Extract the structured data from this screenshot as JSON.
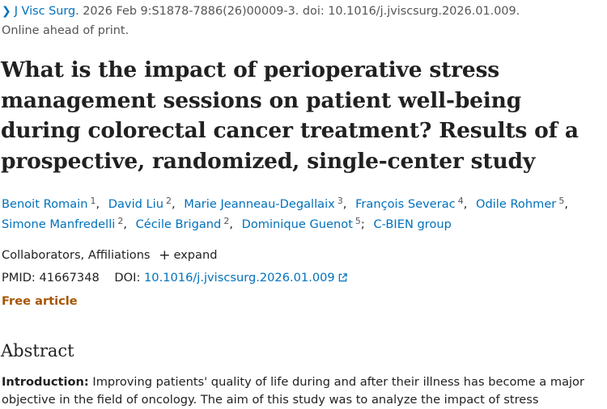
{
  "citation": {
    "journal": "J Visc Surg",
    "details": ". 2026 Feb 9:S1878-7886(26)00009-3. doi: 10.1016/j.jviscsurg.2026.01.009.",
    "status": "Online ahead of print."
  },
  "title": "What is the impact of perioperative stress management sessions on patient well-being during colorectal cancer treatment? Results of a prospective, randomized, single-center study",
  "authors": [
    {
      "name": "Benoit Romain",
      "aff": "1"
    },
    {
      "name": "David Liu",
      "aff": "2"
    },
    {
      "name": "Marie Jeanneau-Degallaix",
      "aff": "3"
    },
    {
      "name": "François Severac",
      "aff": "4"
    },
    {
      "name": "Odile Rohmer",
      "aff": "5"
    },
    {
      "name": "Simone Manfredelli",
      "aff": "2"
    },
    {
      "name": "Cécile Brigand",
      "aff": "2"
    },
    {
      "name": "Dominique Guenot",
      "aff": "5"
    },
    {
      "name": "C-BIEN group",
      "aff": ""
    }
  ],
  "collab": {
    "label": "Collaborators, Affiliations",
    "expand": "expand"
  },
  "ids": {
    "pmid_label": "PMID:",
    "pmid": "41667348",
    "doi_label": "DOI:",
    "doi": "10.1016/j.jviscsurg.2026.01.009"
  },
  "free_article": "Free article",
  "abstract": {
    "heading": "Abstract",
    "intro_label": "Introduction:",
    "intro_text": " Improving patients' quality of life during and after their illness has become a major objective in the field of oncology. The aim of this study was to analyze the impact of stress"
  },
  "icons": {
    "journal_chevron": "chevron-right-icon",
    "expand": "plus-icon",
    "doi_link": "external-link-icon"
  },
  "colors": {
    "link": "#0071bc",
    "free": "#a75500",
    "text": "#212121"
  }
}
